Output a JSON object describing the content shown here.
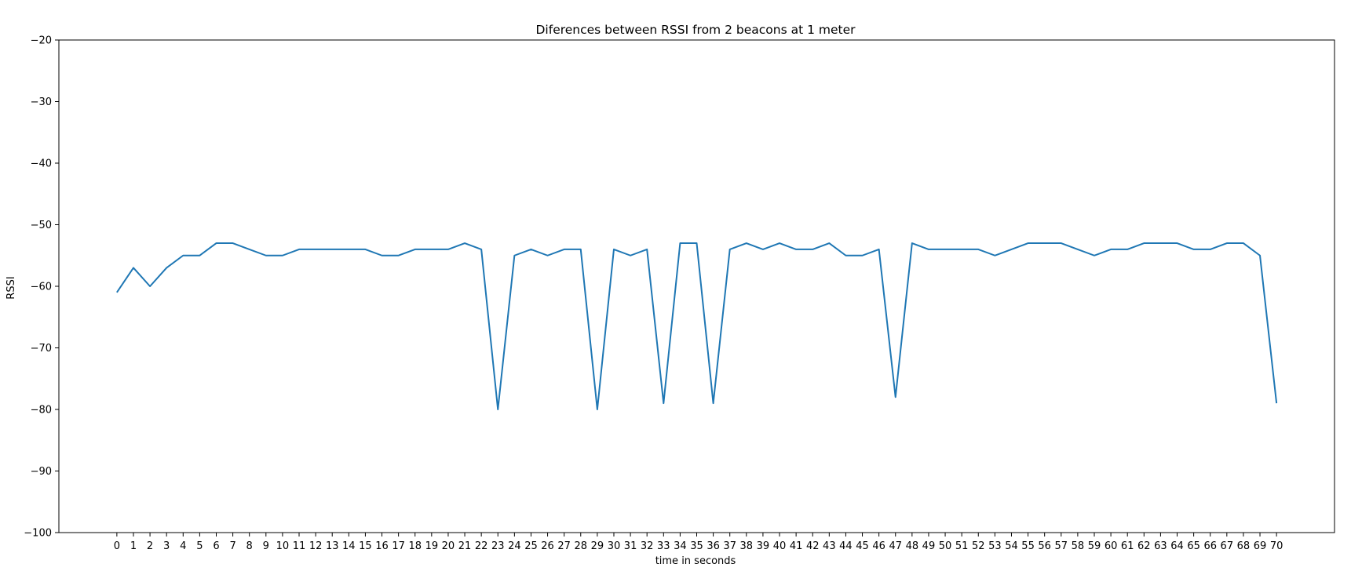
{
  "chart_data": {
    "type": "line",
    "title": "Diferences between RSSI from 2 beacons at 1 meter",
    "xlabel": "time in seconds",
    "ylabel": "RSSI",
    "xlim": [
      -3.5,
      73.5
    ],
    "ylim": [
      -100,
      -20
    ],
    "yticks": [
      -20,
      -30,
      -40,
      -50,
      -60,
      -70,
      -80,
      -90,
      -100
    ],
    "ytick_labels": [
      "−20",
      "−30",
      "−40",
      "−50",
      "−60",
      "−70",
      "−80",
      "−90",
      "−100"
    ],
    "grid": false,
    "colors": {
      "line": "#1f77b4",
      "axes": "#000000",
      "background": "#ffffff"
    },
    "x": [
      0,
      1,
      2,
      3,
      4,
      5,
      6,
      7,
      8,
      9,
      10,
      11,
      12,
      13,
      14,
      15,
      16,
      17,
      18,
      19,
      20,
      21,
      22,
      23,
      24,
      25,
      26,
      27,
      28,
      29,
      30,
      31,
      32,
      33,
      34,
      35,
      36,
      37,
      38,
      39,
      40,
      41,
      42,
      43,
      44,
      45,
      46,
      47,
      48,
      49,
      50,
      51,
      52,
      53,
      54,
      55,
      56,
      57,
      58,
      59,
      60,
      61,
      62,
      63,
      64,
      65,
      66,
      67,
      68,
      69,
      70
    ],
    "series": [
      {
        "values": [
          -61,
          -57,
          -60,
          -57,
          -55,
          -55,
          -53,
          -53,
          -54,
          -55,
          -55,
          -54,
          -54,
          -54,
          -54,
          -54,
          -55,
          -55,
          -54,
          -54,
          -54,
          -53,
          -54,
          -80,
          -55,
          -54,
          -55,
          -54,
          -54,
          -80,
          -54,
          -55,
          -54,
          -79,
          -53,
          -53,
          -79,
          -54,
          -53,
          -54,
          -53,
          -54,
          -54,
          -53,
          -55,
          -55,
          -54,
          -78,
          -53,
          -54,
          -54,
          -54,
          -54,
          -55,
          -54,
          -53,
          -53,
          -53,
          -54,
          -55,
          -54,
          -54,
          -53,
          -53,
          -53,
          -54,
          -54,
          -53,
          -53,
          -55,
          -79
        ]
      }
    ]
  }
}
